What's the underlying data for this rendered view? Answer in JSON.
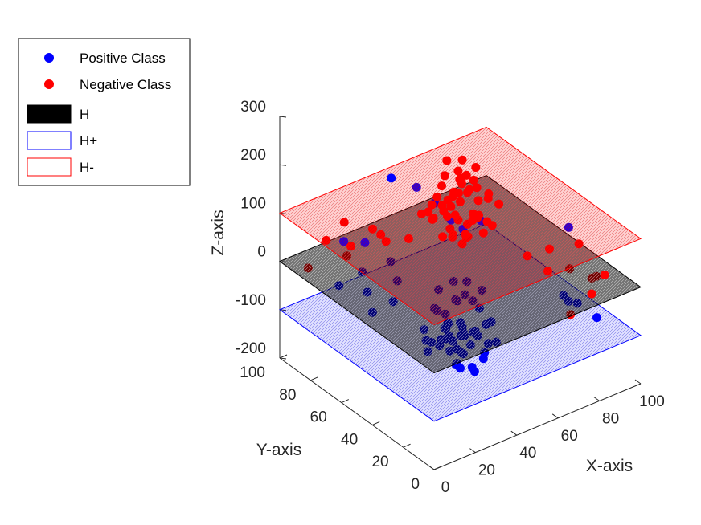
{
  "chart_data": {
    "type": "scatter",
    "projection": "3d",
    "xlabel": "X-axis",
    "ylabel": "Y-axis",
    "zlabel": "Z-axis",
    "xlim": [
      0,
      100
    ],
    "ylim": [
      0,
      100
    ],
    "zlim": [
      -200,
      300
    ],
    "x_ticks": [
      "0",
      "20",
      "40",
      "60",
      "80",
      "100"
    ],
    "y_ticks": [
      "0",
      "20",
      "40",
      "60",
      "80",
      "100"
    ],
    "z_ticks": [
      "-200",
      "-100",
      "0",
      "100",
      "200",
      "300"
    ],
    "legend_position": "top-left",
    "legend": [
      {
        "label": "Positive Class",
        "kind": "marker",
        "color": "#0000ff"
      },
      {
        "label": "Negative Class",
        "kind": "marker",
        "color": "#ff0000"
      },
      {
        "label": "H",
        "kind": "patch",
        "fill": "#000000",
        "edge": "#000000"
      },
      {
        "label": "H+",
        "kind": "patch",
        "fill": "#ffffff",
        "edge": "#0000ff"
      },
      {
        "label": "H-",
        "kind": "patch",
        "fill": "#ffffff",
        "edge": "#ff0000"
      }
    ],
    "planes": [
      {
        "name": "H-",
        "z": 100,
        "color": "#ff0000",
        "opacity": 0.35
      },
      {
        "name": "H",
        "z": 0,
        "color": "#000000",
        "opacity": 0.7
      },
      {
        "name": "H+",
        "z": -100,
        "color": "#0000ff",
        "opacity": 0.3
      }
    ],
    "series": [
      {
        "name": "Positive Class",
        "color": "#0000ff",
        "points": [
          [
            45,
            50,
            -150
          ],
          [
            50,
            48,
            -160
          ],
          [
            52,
            55,
            -170
          ],
          [
            48,
            52,
            -140
          ],
          [
            55,
            50,
            -155
          ],
          [
            42,
            58,
            -145
          ],
          [
            58,
            45,
            -165
          ],
          [
            47,
            46,
            -180
          ],
          [
            53,
            53,
            -175
          ],
          [
            50,
            60,
            -135
          ],
          [
            40,
            50,
            -130
          ],
          [
            60,
            52,
            -150
          ],
          [
            44,
            44,
            -160
          ],
          [
            56,
            56,
            -145
          ],
          [
            49,
            41,
            -170
          ],
          [
            51,
            59,
            -125
          ],
          [
            46,
            54,
            -115
          ],
          [
            54,
            47,
            -120
          ],
          [
            43,
            48,
            -110
          ],
          [
            57,
            58,
            -140
          ],
          [
            38,
            55,
            -150
          ],
          [
            62,
            48,
            -160
          ],
          [
            50,
            50,
            -100
          ],
          [
            48,
            57,
            -95
          ],
          [
            52,
            43,
            -105
          ],
          [
            45,
            60,
            -85
          ],
          [
            55,
            40,
            -90
          ],
          [
            41,
            46,
            -75
          ],
          [
            59,
            54,
            -80
          ],
          [
            50,
            52,
            -60
          ],
          [
            47,
            49,
            -45
          ],
          [
            53,
            51,
            -50
          ],
          [
            44,
            56,
            -35
          ],
          [
            56,
            44,
            -30
          ],
          [
            49,
            53,
            -20
          ],
          [
            51,
            47,
            -10
          ],
          [
            46,
            50,
            -130
          ],
          [
            54,
            55,
            -145
          ],
          [
            40,
            60,
            -120
          ],
          [
            60,
            40,
            -135
          ],
          [
            35,
            52,
            -115
          ],
          [
            65,
            50,
            -125
          ],
          [
            50,
            35,
            -140
          ],
          [
            50,
            65,
            -110
          ],
          [
            42,
            42,
            -155
          ],
          [
            58,
            58,
            -160
          ],
          [
            37,
            45,
            -100
          ],
          [
            63,
            55,
            -105
          ],
          [
            48,
            38,
            -170
          ],
          [
            52,
            62,
            -165
          ],
          [
            20,
            70,
            -30
          ],
          [
            25,
            80,
            -20
          ],
          [
            15,
            60,
            -40
          ],
          [
            10,
            75,
            -10
          ],
          [
            30,
            85,
            20
          ],
          [
            80,
            20,
            -40
          ],
          [
            85,
            30,
            -60
          ],
          [
            90,
            15,
            -80
          ],
          [
            35,
            75,
            -5
          ],
          [
            28,
            64,
            -50
          ],
          [
            95,
            40,
            40
          ],
          [
            22,
            88,
            30
          ],
          [
            70,
            75,
            0
          ],
          [
            75,
            70,
            20
          ],
          [
            60,
            80,
            60
          ],
          [
            55,
            85,
            90
          ],
          [
            45,
            88,
            120
          ],
          [
            62,
            72,
            40
          ],
          [
            88,
            25,
            -70
          ],
          [
            33,
            68,
            -25
          ]
        ]
      },
      {
        "name": "Negative Class",
        "color": "#ff0000",
        "points": [
          [
            50,
            50,
            150
          ],
          [
            48,
            52,
            160
          ],
          [
            52,
            48,
            170
          ],
          [
            45,
            55,
            140
          ],
          [
            55,
            45,
            155
          ],
          [
            47,
            47,
            180
          ],
          [
            53,
            53,
            175
          ],
          [
            42,
            50,
            145
          ],
          [
            58,
            50,
            165
          ],
          [
            50,
            42,
            130
          ],
          [
            50,
            58,
            135
          ],
          [
            44,
            46,
            190
          ],
          [
            56,
            54,
            185
          ],
          [
            46,
            53,
            120
          ],
          [
            54,
            47,
            125
          ],
          [
            40,
            55,
            150
          ],
          [
            60,
            45,
            160
          ],
          [
            49,
            49,
            200
          ],
          [
            51,
            51,
            195
          ],
          [
            43,
            58,
            110
          ],
          [
            57,
            42,
            115
          ],
          [
            48,
            44,
            100
          ],
          [
            52,
            56,
            105
          ],
          [
            45,
            48,
            95
          ],
          [
            55,
            52,
            90
          ],
          [
            50,
            46,
            85
          ],
          [
            47,
            51,
            80
          ],
          [
            53,
            49,
            75
          ],
          [
            41,
            44,
            170
          ],
          [
            59,
            56,
            145
          ],
          [
            38,
            52,
            130
          ],
          [
            62,
            48,
            140
          ],
          [
            50,
            38,
            150
          ],
          [
            50,
            62,
            155
          ],
          [
            44,
            52,
            210
          ],
          [
            56,
            48,
            215
          ],
          [
            48,
            56,
            225
          ],
          [
            52,
            44,
            205
          ],
          [
            46,
            46,
            230
          ],
          [
            54,
            54,
            220
          ],
          [
            42,
            60,
            120
          ],
          [
            58,
            40,
            110
          ],
          [
            40,
            48,
            100
          ],
          [
            60,
            52,
            95
          ],
          [
            35,
            55,
            140
          ],
          [
            65,
            45,
            130
          ],
          [
            50,
            35,
            120
          ],
          [
            50,
            65,
            125
          ],
          [
            45,
            42,
            90
          ],
          [
            55,
            58,
            85
          ],
          [
            30,
            80,
            60
          ],
          [
            20,
            85,
            80
          ],
          [
            15,
            90,
            40
          ],
          [
            85,
            20,
            70
          ],
          [
            90,
            10,
            20
          ],
          [
            95,
            25,
            -30
          ],
          [
            80,
            5,
            10
          ],
          [
            10,
            95,
            -20
          ],
          [
            25,
            90,
            -10
          ],
          [
            75,
            12,
            -40
          ],
          [
            88,
            30,
            -10
          ],
          [
            70,
            20,
            40
          ],
          [
            35,
            78,
            30
          ],
          [
            92,
            18,
            -5
          ],
          [
            18,
            78,
            50
          ],
          [
            60,
            70,
            30
          ],
          [
            40,
            70,
            45
          ],
          [
            82,
            35,
            30
          ],
          [
            66,
            28,
            60
          ],
          [
            28,
            72,
            70
          ]
        ]
      }
    ]
  }
}
